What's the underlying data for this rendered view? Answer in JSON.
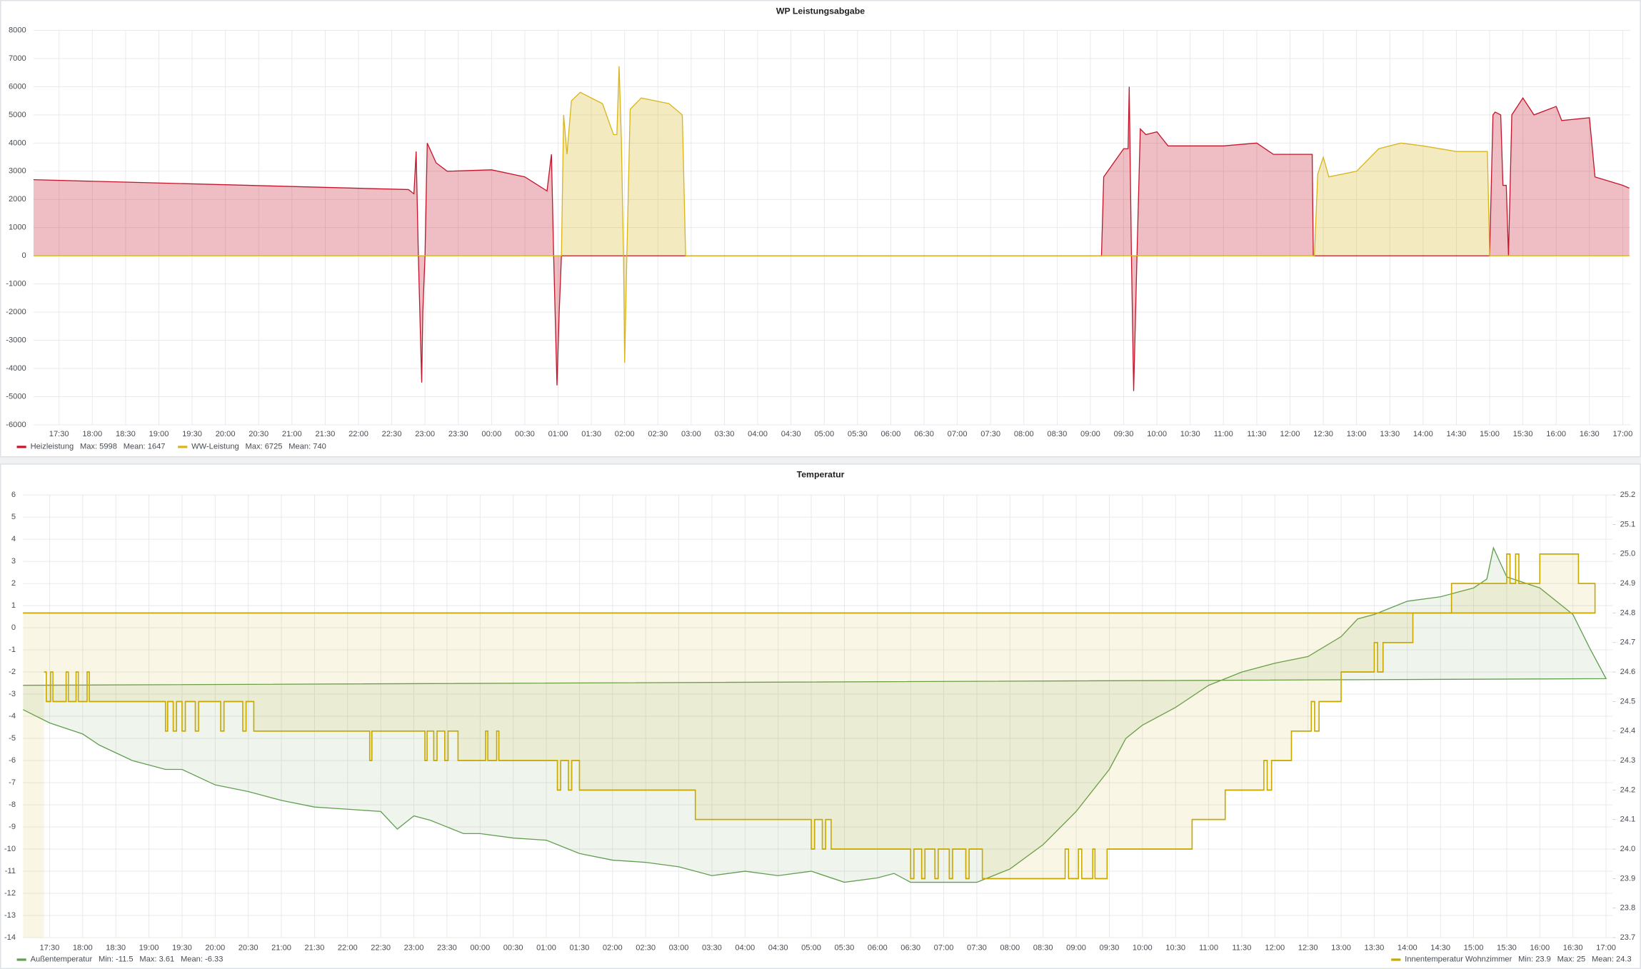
{
  "chart_data": [
    {
      "type": "line",
      "title": "WP Leistungsabgabe",
      "xlim": [
        "17:07",
        "17:07"
      ],
      "xticks": [
        "17:30",
        "18:00",
        "18:30",
        "19:00",
        "19:30",
        "20:00",
        "20:30",
        "21:00",
        "21:30",
        "22:00",
        "22:30",
        "23:00",
        "23:30",
        "00:00",
        "00:30",
        "01:00",
        "01:30",
        "02:00",
        "02:30",
        "03:00",
        "03:30",
        "04:00",
        "04:30",
        "05:00",
        "05:30",
        "06:00",
        "06:30",
        "07:00",
        "07:30",
        "08:00",
        "08:30",
        "09:00",
        "09:30",
        "10:00",
        "10:30",
        "11:00",
        "11:30",
        "12:00",
        "12:30",
        "13:00",
        "13:30",
        "14:00",
        "14:30",
        "15:00",
        "15:30",
        "16:00",
        "16:30",
        "17:00"
      ],
      "ylim": [
        -6000,
        8000
      ],
      "yticks": [
        -6000,
        -5000,
        -4000,
        -3000,
        -2000,
        -1000,
        0,
        1000,
        2000,
        3000,
        4000,
        5000,
        6000,
        7000,
        8000
      ],
      "grid": true,
      "legend": "bottom",
      "series": [
        {
          "name": "Heizleistung",
          "color": "#c4162a",
          "stats": [
            "Max: 5998",
            "Mean: 1647"
          ],
          "x": [
            "17:07",
            "22:45",
            "22:50",
            "22:52",
            "22:54",
            "22:57",
            "22:58",
            "23:00",
            "23:02",
            "23:10",
            "23:20",
            "00:00",
            "00:30",
            "00:50",
            "00:54",
            "00:56",
            "00:59",
            "01:01",
            "01:03",
            "09:10",
            "09:12",
            "09:30",
            "09:34",
            "09:35",
            "09:37",
            "09:39",
            "09:42",
            "09:45",
            "09:50",
            "10:00",
            "10:10",
            "11:00",
            "11:30",
            "11:45",
            "12:20",
            "12:21",
            "15:00",
            "15:03",
            "15:05",
            "15:10",
            "15:12",
            "15:15",
            "15:17",
            "15:20",
            "15:30",
            "15:40",
            "16:00",
            "16:05",
            "16:30",
            "16:35",
            "17:00",
            "17:06"
          ],
          "values": [
            2700,
            2350,
            2200,
            3700,
            0,
            -4500,
            -2000,
            0,
            4000,
            3300,
            3000,
            3050,
            2800,
            2300,
            3600,
            0,
            -4600,
            -2000,
            0,
            0,
            2800,
            3800,
            3800,
            5998,
            0,
            -4800,
            0,
            4500,
            4300,
            4400,
            3900,
            3900,
            4000,
            3600,
            3600,
            0,
            0,
            5000,
            5100,
            5000,
            2500,
            2500,
            0,
            5000,
            5600,
            5000,
            5300,
            4800,
            4900,
            2800,
            2500,
            2400
          ]
        },
        {
          "name": "WW-Leistung",
          "color": "#d9b51c",
          "stats": [
            "Max: 6725",
            "Mean: 740"
          ],
          "x": [
            "17:07",
            "01:03",
            "01:05",
            "01:08",
            "01:12",
            "01:20",
            "01:40",
            "01:50",
            "01:53",
            "01:55",
            "01:57",
            "01:59",
            "02:00",
            "02:02",
            "02:05",
            "02:15",
            "02:40",
            "02:52",
            "02:55",
            "12:22",
            "12:25",
            "12:30",
            "12:35",
            "13:00",
            "13:20",
            "13:40",
            "14:00",
            "14:30",
            "14:58",
            "15:00",
            "17:06"
          ],
          "values": [
            0,
            0,
            5000,
            3600,
            5500,
            5800,
            5400,
            4300,
            4300,
            6725,
            4200,
            0,
            -3800,
            0,
            5200,
            5600,
            5400,
            5000,
            0,
            0,
            2900,
            3500,
            2800,
            3000,
            3800,
            4000,
            3900,
            3700,
            3700,
            0,
            0
          ]
        }
      ]
    },
    {
      "type": "line",
      "title": "Temperatur",
      "xlim": [
        "17:06",
        "17:06"
      ],
      "xticks": [
        "17:30",
        "18:00",
        "18:30",
        "19:00",
        "19:30",
        "20:00",
        "20:30",
        "21:00",
        "21:30",
        "22:00",
        "22:30",
        "23:00",
        "23:30",
        "00:00",
        "00:30",
        "01:00",
        "01:30",
        "02:00",
        "02:30",
        "03:00",
        "03:30",
        "04:00",
        "04:30",
        "05:00",
        "05:30",
        "06:00",
        "06:30",
        "07:00",
        "07:30",
        "08:00",
        "08:30",
        "09:00",
        "09:30",
        "10:00",
        "10:30",
        "11:00",
        "11:30",
        "12:00",
        "12:30",
        "13:00",
        "13:30",
        "14:00",
        "14:30",
        "15:00",
        "15:30",
        "16:00",
        "16:30",
        "17:00"
      ],
      "ylim": [
        -14,
        6
      ],
      "yticks": [
        -14,
        -13,
        -12,
        -11,
        -10,
        -9,
        -8,
        -7,
        -6,
        -5,
        -4,
        -3,
        -2,
        -1,
        0,
        1,
        2,
        3,
        4,
        5,
        6
      ],
      "y2lim": [
        23.7,
        25.2
      ],
      "y2ticks": [
        23.7,
        23.8,
        23.9,
        {
          "value": 24,
          "label": "24.0"
        },
        24.1,
        24.2,
        24.3,
        24.4,
        24.5,
        24.6,
        24.7,
        24.8,
        24.9,
        {
          "value": 25,
          "label": "25.0"
        },
        25.1,
        25.2
      ],
      "grid": true,
      "legend": "bottom",
      "series": [
        {
          "name": "Außentemperatur",
          "color": "#629e51",
          "stats": [
            "Min: -11.5",
            "Max: 3.61",
            "Mean: -6.33"
          ],
          "x": [
            "17:06",
            "17:30",
            "18:00",
            "18:15",
            "18:45",
            "19:15",
            "19:30",
            "20:00",
            "20:30",
            "21:00",
            "21:30",
            "22:00",
            "22:30",
            "22:45",
            "23:00",
            "23:15",
            "23:30",
            "23:45",
            "00:00",
            "00:30",
            "01:00",
            "01:30",
            "02:00",
            "02:30",
            "03:00",
            "03:30",
            "04:00",
            "04:30",
            "05:00",
            "05:30",
            "06:00",
            "06:15",
            "06:30",
            "07:00",
            "07:30",
            "08:00",
            "08:30",
            "09:00",
            "09:30",
            "09:45",
            "10:00",
            "10:30",
            "11:00",
            "11:30",
            "12:00",
            "12:30",
            "13:00",
            "13:15",
            "13:30",
            "14:00",
            "14:30",
            "14:45",
            "15:00",
            "15:12",
            "15:18",
            "15:30",
            "16:00",
            "16:30",
            "16:45",
            "17:00",
            "17:06"
          ],
          "values": [
            -3.7,
            -4.3,
            -4.8,
            -5.3,
            -6.0,
            -6.4,
            -6.4,
            -7.1,
            -7.4,
            -7.8,
            -8.1,
            -8.2,
            -8.3,
            -9.1,
            -8.5,
            -8.7,
            -9.0,
            -9.3,
            -9.3,
            -9.5,
            -9.6,
            -10.2,
            -10.5,
            -10.6,
            -10.8,
            -11.2,
            -11.0,
            -11.2,
            -11.0,
            -11.5,
            -11.3,
            -11.1,
            -11.5,
            -11.5,
            -11.5,
            -10.9,
            -9.8,
            -8.3,
            -6.4,
            -5.0,
            -4.4,
            -3.6,
            -2.6,
            -2.0,
            -1.6,
            -1.3,
            -0.4,
            0.4,
            0.6,
            1.2,
            1.4,
            1.6,
            1.8,
            2.2,
            3.61,
            2.3,
            1.8,
            0.6,
            -0.9,
            -2.3,
            -2.6
          ]
        },
        {
          "name": "Innentemperatur Wohnzimmer",
          "color": "#c9a900",
          "axis": "y2",
          "steps": true,
          "stats": [
            "Min: 23.9",
            "Max: 25",
            "Mean: 24.3"
          ],
          "x": [
            "17:25",
            "17:27",
            "17:31",
            "17:33",
            "17:45",
            "17:47",
            "17:54",
            "17:56",
            "18:04",
            "18:06",
            "19:15",
            "19:17",
            "19:22",
            "19:25",
            "19:30",
            "19:33",
            "19:42",
            "19:45",
            "20:05",
            "20:08",
            "20:25",
            "20:28",
            "20:35",
            "22:20",
            "22:22",
            "23:10",
            "23:12",
            "23:18",
            "23:21",
            "23:28",
            "23:31",
            "23:40",
            "00:05",
            "00:07",
            "00:15",
            "00:17",
            "01:10",
            "01:13",
            "01:20",
            "01:23",
            "01:30",
            "03:15",
            "05:00",
            "05:03",
            "05:10",
            "05:13",
            "05:18",
            "06:30",
            "06:33",
            "06:40",
            "06:43",
            "06:52",
            "06:55",
            "07:05",
            "07:08",
            "07:20",
            "07:23",
            "07:35",
            "08:50",
            "08:53",
            "09:02",
            "09:05",
            "09:15",
            "09:17",
            "09:28",
            "10:45",
            "11:15",
            "11:50",
            "11:53",
            "11:57",
            "12:15",
            "12:33",
            "12:36",
            "12:40",
            "13:00",
            "13:30",
            "13:33",
            "13:38",
            "14:05",
            "14:40",
            "15:30",
            "15:33",
            "15:38",
            "15:41",
            "16:00",
            "16:35",
            "16:50",
            "17:06"
          ],
          "values": [
            24.6,
            24.5,
            24.6,
            24.5,
            24.6,
            24.5,
            24.6,
            24.5,
            24.6,
            24.5,
            24.4,
            24.5,
            24.4,
            24.5,
            24.4,
            24.5,
            24.4,
            24.5,
            24.4,
            24.5,
            24.4,
            24.5,
            24.4,
            24.3,
            24.4,
            24.3,
            24.4,
            24.3,
            24.4,
            24.3,
            24.4,
            24.3,
            24.4,
            24.3,
            24.4,
            24.3,
            24.2,
            24.3,
            24.2,
            24.3,
            24.2,
            24.1,
            24.0,
            24.1,
            24.0,
            24.1,
            24.0,
            23.9,
            24.0,
            23.9,
            24.0,
            23.9,
            24.0,
            23.9,
            24.0,
            23.9,
            24.0,
            23.9,
            24.0,
            23.9,
            24.0,
            23.9,
            24.0,
            23.9,
            24.0,
            24.1,
            24.2,
            24.3,
            24.2,
            24.3,
            24.4,
            24.5,
            24.4,
            24.5,
            24.6,
            24.7,
            24.6,
            24.7,
            24.8,
            24.9,
            25.0,
            24.9,
            25.0,
            24.9,
            25.0,
            24.9,
            24.8,
            24.8
          ]
        }
      ]
    }
  ]
}
